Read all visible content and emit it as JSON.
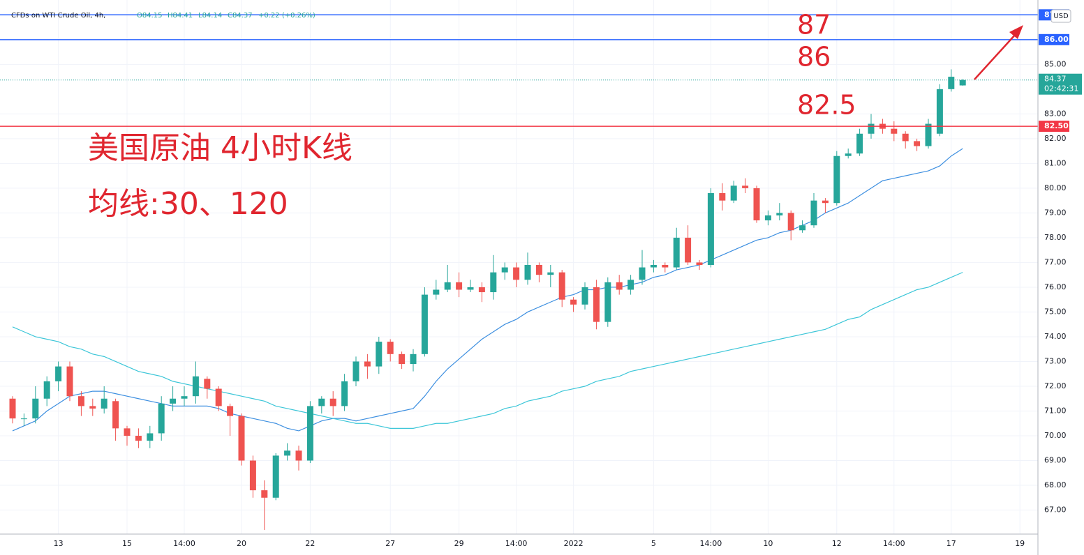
{
  "chart_data": {
    "type": "candlestick",
    "header": {
      "symbol": "CFDs on WTI Crude Oil, 4h,",
      "ohlc": [
        "O84.15",
        "H84.41",
        "L84.14",
        "C84.37"
      ],
      "change": "+0.22 (+0.26%)"
    },
    "currency": "USD",
    "annotations": [
      "87",
      "86",
      "82.5",
      "美国原油 4小时K线",
      "均线:30、120"
    ],
    "categories": [
      null,
      null,
      null,
      null,
      "13",
      null,
      null,
      null,
      null,
      null,
      "15",
      null,
      null,
      null,
      null,
      "14:00",
      null,
      null,
      null,
      null,
      "20",
      null,
      null,
      null,
      null,
      null,
      "22",
      null,
      null,
      null,
      null,
      null,
      null,
      "27",
      null,
      null,
      null,
      null,
      null,
      "29",
      null,
      null,
      null,
      null,
      "14:00",
      null,
      null,
      null,
      null,
      "2022",
      null,
      null,
      null,
      null,
      null,
      null,
      "5",
      null,
      null,
      null,
      null,
      "14:00",
      null,
      null,
      null,
      null,
      "10",
      null,
      null,
      null,
      null,
      null,
      "12",
      null,
      null,
      null,
      null,
      "14:00",
      null,
      null,
      null,
      null,
      "17",
      null,
      null,
      null,
      null,
      null,
      "19",
      null
    ],
    "candles": [
      [
        71.5,
        71.6,
        70.5,
        70.7
      ],
      [
        70.7,
        70.9,
        70.4,
        70.7
      ],
      [
        70.7,
        72.0,
        70.5,
        71.5
      ],
      [
        71.5,
        72.4,
        71.2,
        72.2
      ],
      [
        72.2,
        73.0,
        71.8,
        72.8
      ],
      [
        72.8,
        73.0,
        71.4,
        71.6
      ],
      [
        71.6,
        71.8,
        70.8,
        71.2
      ],
      [
        71.2,
        71.5,
        70.8,
        71.1
      ],
      [
        71.1,
        72.0,
        70.9,
        71.5
      ],
      [
        71.4,
        71.5,
        69.8,
        70.3
      ],
      [
        70.3,
        70.4,
        69.6,
        70.0
      ],
      [
        70.0,
        70.3,
        69.5,
        69.8
      ],
      [
        69.8,
        70.4,
        69.5,
        70.1
      ],
      [
        70.1,
        71.6,
        69.8,
        71.3
      ],
      [
        71.3,
        72.0,
        71.0,
        71.5
      ],
      [
        71.5,
        72.0,
        71.2,
        71.6
      ],
      [
        71.6,
        73.0,
        71.3,
        72.4
      ],
      [
        72.3,
        72.4,
        71.5,
        71.9
      ],
      [
        71.9,
        72.0,
        71.0,
        71.2
      ],
      [
        71.2,
        71.3,
        70.0,
        70.8
      ],
      [
        70.8,
        70.9,
        68.8,
        69.0
      ],
      [
        69.0,
        69.2,
        67.5,
        67.8
      ],
      [
        67.8,
        68.2,
        66.2,
        67.5
      ],
      [
        67.5,
        69.3,
        67.4,
        69.2
      ],
      [
        69.2,
        69.7,
        69.0,
        69.4
      ],
      [
        69.4,
        69.6,
        68.6,
        69.0
      ],
      [
        69.0,
        71.4,
        68.9,
        71.2
      ],
      [
        71.2,
        71.6,
        70.9,
        71.5
      ],
      [
        71.5,
        71.8,
        70.8,
        71.2
      ],
      [
        71.2,
        72.5,
        71.0,
        72.2
      ],
      [
        72.2,
        73.2,
        72.0,
        73.0
      ],
      [
        73.0,
        73.3,
        72.3,
        72.8
      ],
      [
        72.8,
        74.0,
        72.5,
        73.8
      ],
      [
        73.8,
        73.9,
        73.0,
        73.3
      ],
      [
        73.3,
        73.4,
        72.7,
        72.9
      ],
      [
        72.9,
        73.5,
        72.6,
        73.3
      ],
      [
        73.3,
        76.0,
        73.2,
        75.7
      ],
      [
        75.7,
        76.3,
        75.5,
        75.9
      ],
      [
        75.9,
        76.9,
        75.8,
        76.2
      ],
      [
        76.2,
        76.6,
        75.6,
        75.9
      ],
      [
        75.9,
        76.3,
        75.8,
        76.0
      ],
      [
        76.0,
        76.2,
        75.4,
        75.8
      ],
      [
        75.8,
        77.3,
        75.5,
        76.6
      ],
      [
        76.6,
        77.0,
        76.3,
        76.8
      ],
      [
        76.8,
        77.0,
        76.0,
        76.3
      ],
      [
        76.3,
        77.4,
        76.1,
        76.9
      ],
      [
        76.9,
        77.0,
        76.2,
        76.5
      ],
      [
        76.5,
        76.9,
        76.0,
        76.6
      ],
      [
        76.6,
        76.7,
        75.2,
        75.5
      ],
      [
        75.5,
        75.6,
        75.0,
        75.3
      ],
      [
        75.3,
        76.2,
        75.1,
        76.0
      ],
      [
        76.0,
        76.3,
        74.3,
        74.6
      ],
      [
        74.6,
        76.4,
        74.4,
        76.2
      ],
      [
        76.2,
        76.5,
        75.7,
        75.9
      ],
      [
        75.9,
        76.5,
        75.7,
        76.3
      ],
      [
        76.3,
        77.5,
        76.1,
        76.8
      ],
      [
        76.8,
        77.1,
        76.6,
        76.9
      ],
      [
        76.9,
        77.0,
        76.6,
        76.8
      ],
      [
        76.8,
        78.4,
        76.7,
        78.0
      ],
      [
        78.0,
        78.5,
        76.9,
        77.0
      ],
      [
        77.0,
        77.1,
        76.7,
        76.9
      ],
      [
        76.9,
        80.0,
        76.8,
        79.8
      ],
      [
        79.8,
        80.2,
        79.1,
        79.5
      ],
      [
        79.5,
        80.3,
        79.4,
        80.1
      ],
      [
        80.1,
        80.4,
        79.8,
        80.0
      ],
      [
        80.0,
        80.1,
        78.6,
        78.7
      ],
      [
        78.7,
        79.1,
        78.5,
        78.9
      ],
      [
        78.9,
        79.4,
        78.7,
        79.0
      ],
      [
        79.0,
        79.1,
        77.9,
        78.3
      ],
      [
        78.3,
        78.7,
        78.2,
        78.5
      ],
      [
        78.5,
        79.8,
        78.4,
        79.5
      ],
      [
        79.5,
        79.6,
        79.0,
        79.4
      ],
      [
        79.4,
        81.5,
        79.3,
        81.3
      ],
      [
        81.3,
        81.6,
        81.2,
        81.4
      ],
      [
        81.4,
        82.4,
        81.3,
        82.2
      ],
      [
        82.2,
        83.0,
        82.0,
        82.6
      ],
      [
        82.6,
        82.8,
        82.2,
        82.4
      ],
      [
        82.4,
        82.7,
        81.9,
        82.2
      ],
      [
        82.2,
        82.3,
        81.6,
        81.9
      ],
      [
        81.9,
        82.0,
        81.5,
        81.7
      ],
      [
        81.7,
        82.8,
        81.6,
        82.6
      ],
      [
        82.2,
        84.2,
        82.1,
        84.0
      ],
      [
        84.0,
        84.8,
        83.9,
        84.5
      ],
      [
        84.15,
        84.41,
        84.14,
        84.37
      ],
      null,
      null,
      null,
      null,
      null,
      null
    ],
    "series": [
      {
        "name": "MA 30",
        "color": "#3d8fe0",
        "values": [
          70.2,
          70.4,
          70.6,
          71.0,
          71.3,
          71.6,
          71.7,
          71.8,
          71.8,
          71.7,
          71.6,
          71.5,
          71.4,
          71.3,
          71.2,
          71.2,
          71.2,
          71.2,
          71.1,
          70.9,
          70.8,
          70.7,
          70.6,
          70.5,
          70.3,
          70.2,
          70.4,
          70.6,
          70.7,
          70.7,
          70.6,
          70.7,
          70.8,
          70.9,
          71.0,
          71.1,
          71.6,
          72.2,
          72.7,
          73.1,
          73.5,
          73.9,
          74.2,
          74.5,
          74.7,
          75.0,
          75.2,
          75.4,
          75.6,
          75.7,
          75.9,
          75.9,
          76.0,
          76.0,
          76.1,
          76.2,
          76.4,
          76.5,
          76.7,
          76.8,
          76.9,
          77.1,
          77.3,
          77.5,
          77.7,
          77.9,
          78.0,
          78.2,
          78.3,
          78.5,
          78.7,
          79.0,
          79.2,
          79.4,
          79.7,
          80.0,
          80.3,
          80.4,
          80.5,
          80.6,
          80.7,
          80.9,
          81.3,
          81.6,
          null,
          null,
          null,
          null,
          null,
          null
        ]
      },
      {
        "name": "MA 120",
        "color": "#3cc6d8",
        "values": [
          74.4,
          74.2,
          74.0,
          73.9,
          73.8,
          73.6,
          73.5,
          73.3,
          73.2,
          73.0,
          72.8,
          72.6,
          72.5,
          72.4,
          72.2,
          72.1,
          72.0,
          71.9,
          71.8,
          71.7,
          71.6,
          71.5,
          71.4,
          71.2,
          71.1,
          71.0,
          70.9,
          70.8,
          70.7,
          70.6,
          70.5,
          70.5,
          70.4,
          70.3,
          70.3,
          70.3,
          70.4,
          70.5,
          70.5,
          70.6,
          70.7,
          70.8,
          70.9,
          71.1,
          71.2,
          71.4,
          71.5,
          71.6,
          71.8,
          71.9,
          72.0,
          72.2,
          72.3,
          72.4,
          72.6,
          72.7,
          72.8,
          72.9,
          73.0,
          73.1,
          73.2,
          73.3,
          73.4,
          73.5,
          73.6,
          73.7,
          73.8,
          73.9,
          74.0,
          74.1,
          74.2,
          74.3,
          74.5,
          74.7,
          74.8,
          75.1,
          75.3,
          75.5,
          75.7,
          75.9,
          76.0,
          76.2,
          76.4,
          76.6,
          null,
          null,
          null,
          null,
          null,
          null
        ]
      }
    ],
    "up_color": "#26a69a",
    "down_color": "#ef5350",
    "levels": [
      {
        "value": 87,
        "label": "87",
        "color": "#2962ff"
      },
      {
        "value": 86,
        "label": "86.00",
        "color": "#2962ff"
      },
      {
        "value": 82.5,
        "label": "82.50",
        "color": "#f23645"
      }
    ],
    "last_price": {
      "value": 84.37,
      "label": "84.37",
      "countdown": "02:42:31",
      "color": "#26a69a"
    },
    "ylim": [
      66.03,
      87.6
    ],
    "yticks": [
      {
        "value": 67,
        "label": "67.00"
      },
      {
        "value": 68,
        "label": "68.00"
      },
      {
        "value": 69,
        "label": "69.00"
      },
      {
        "value": 70,
        "label": "70.00"
      },
      {
        "value": 71,
        "label": "71.00"
      },
      {
        "value": 72,
        "label": "72.00"
      },
      {
        "value": 73,
        "label": "73.00"
      },
      {
        "value": 74,
        "label": "74.00"
      },
      {
        "value": 75,
        "label": "75.00"
      },
      {
        "value": 76,
        "label": "76.00"
      },
      {
        "value": 77,
        "label": "77.00"
      },
      {
        "value": 78,
        "label": "78.00"
      },
      {
        "value": 79,
        "label": "79.00"
      },
      {
        "value": 80,
        "label": "80.00"
      },
      {
        "value": 81,
        "label": "81.00"
      },
      {
        "value": 82,
        "label": "82.00"
      },
      {
        "value": 83,
        "label": "83.00"
      },
      {
        "value": 85,
        "label": "85.00"
      }
    ],
    "grid": true
  }
}
